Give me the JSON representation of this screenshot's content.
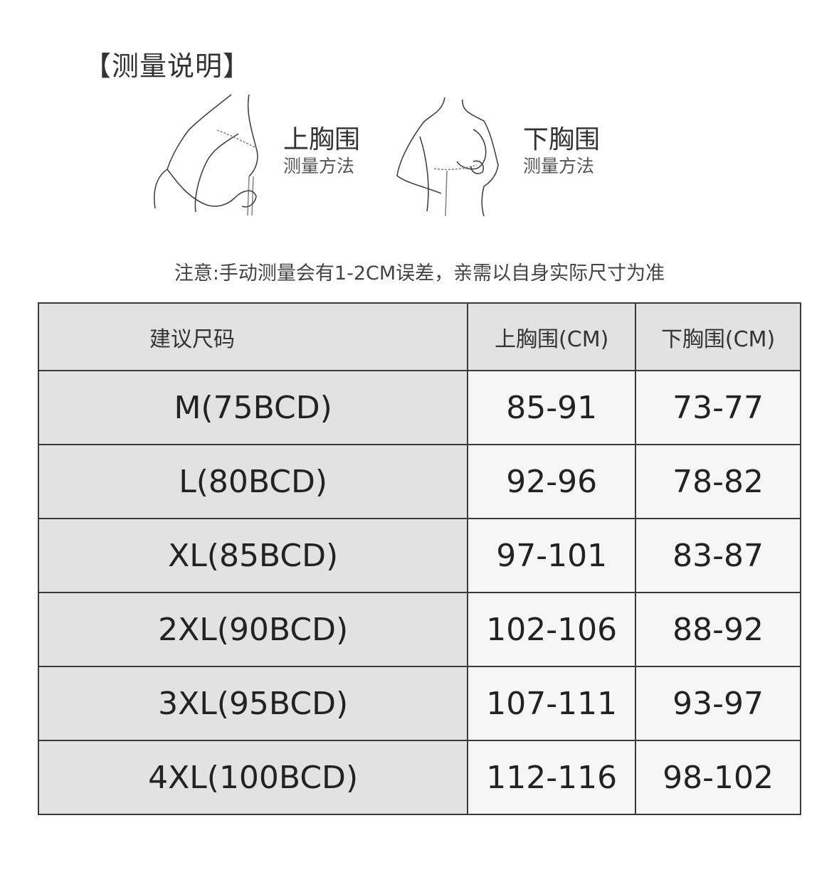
{
  "title": "【测量说明】",
  "figures": [
    {
      "name": "upper-bust",
      "label": "上胸围",
      "sublabel": "测量方法"
    },
    {
      "name": "under-bust",
      "label": "下胸围",
      "sublabel": "测量方法"
    }
  ],
  "note": "注意:手动测量会有1-2CM误差，亲需以自身实际尺寸为准",
  "table": {
    "headers": [
      "建议尺码",
      "上胸围(CM)",
      "下胸围(CM)"
    ],
    "rows": [
      [
        "M(75BCD)",
        "85-91",
        "73-77"
      ],
      [
        "L(80BCD)",
        "92-96",
        "78-82"
      ],
      [
        "XL(85BCD)",
        "97-101",
        "83-87"
      ],
      [
        "2XL(90BCD)",
        "102-106",
        "88-92"
      ],
      [
        "3XL(95BCD)",
        "107-111",
        "93-97"
      ],
      [
        "4XL(100BCD)",
        "112-116",
        "98-102"
      ]
    ]
  }
}
